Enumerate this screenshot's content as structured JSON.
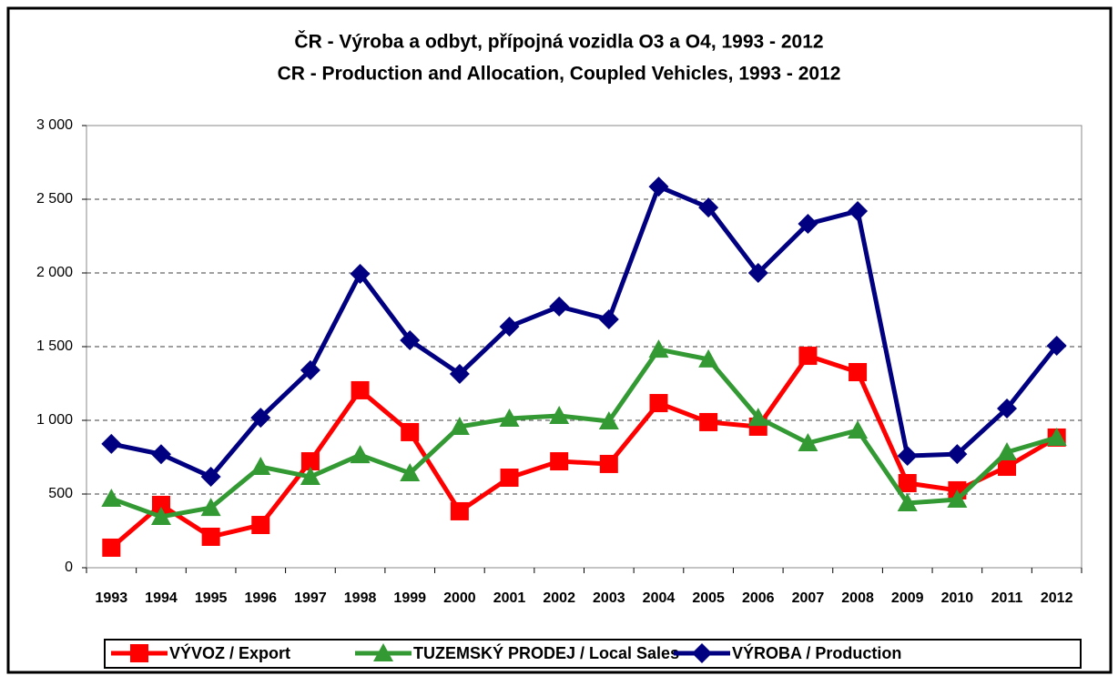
{
  "chart_data": {
    "type": "line",
    "title": "ČR - Výroba a odbyt, přípojná vozidla O3 a O4, 1993 - 2012",
    "subtitle": "CR - Production and Allocation, Coupled Vehicles, 1993 - 2012",
    "categories": [
      "1993",
      "1994",
      "1995",
      "1996",
      "1997",
      "1998",
      "1999",
      "2000",
      "2001",
      "2002",
      "2003",
      "2004",
      "2005",
      "2006",
      "2007",
      "2008",
      "2009",
      "2010",
      "2011",
      "2012"
    ],
    "series": [
      {
        "name": "VÝVOZ / Export",
        "color": "#ff0000",
        "marker": "square",
        "values": [
          136,
          426,
          210,
          290,
          722,
          1204,
          920,
          383,
          611,
          722,
          704,
          1117,
          988,
          957,
          1438,
          1327,
          574,
          525,
          685,
          883
        ]
      },
      {
        "name": "TUZEMSKÝ PRODEJ / Local Sales",
        "color": "#339933",
        "marker": "triangle",
        "values": [
          469,
          346,
          407,
          685,
          617,
          765,
          642,
          957,
          1012,
          1031,
          994,
          1481,
          1414,
          1018,
          846,
          932,
          438,
          463,
          784,
          883
        ]
      },
      {
        "name": "VÝROBA / Production",
        "color": "#000080",
        "marker": "diamond",
        "values": [
          840,
          770,
          617,
          1018,
          1340,
          1994,
          1543,
          1315,
          1636,
          1772,
          1685,
          2586,
          2444,
          2000,
          2333,
          2420,
          759,
          771,
          1080,
          1506
        ]
      }
    ],
    "ylim": [
      0,
      3000
    ],
    "yticks": [
      0,
      500,
      {
        "value": 1000,
        "label": "1 000"
      },
      {
        "value": 1500,
        "label": "1 500"
      },
      {
        "value": 2000,
        "label": "2 000"
      },
      {
        "value": 2500,
        "label": "2 500"
      },
      {
        "value": 3000,
        "label": "3 000"
      }
    ],
    "grid": true,
    "legend": "bottom"
  }
}
